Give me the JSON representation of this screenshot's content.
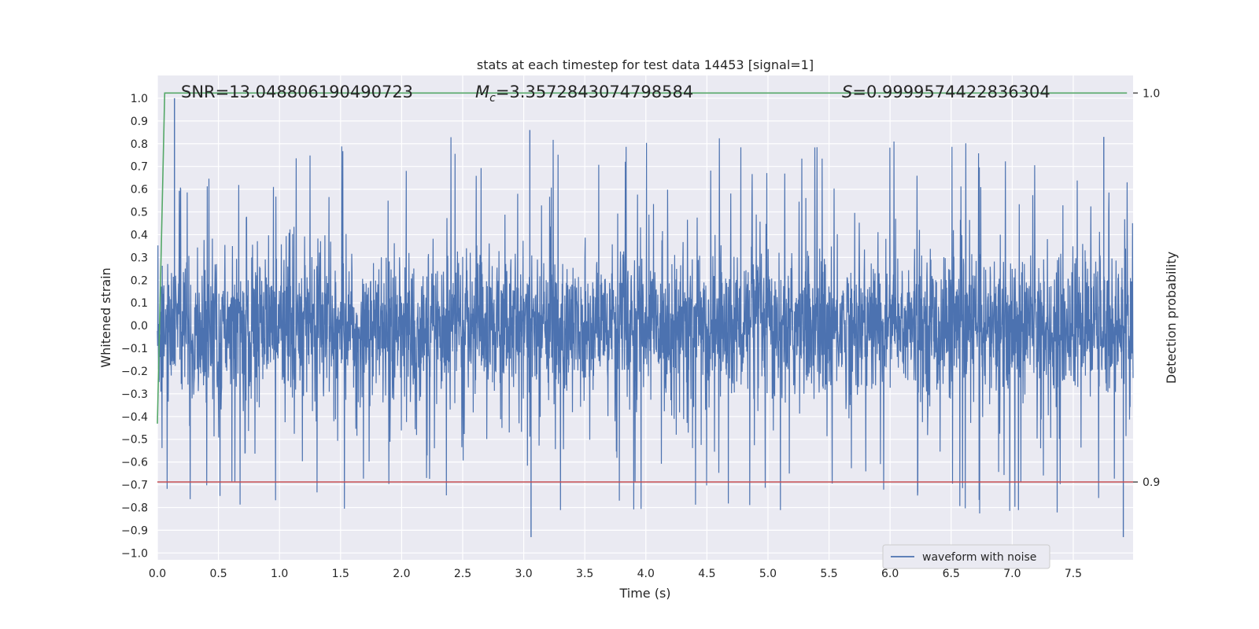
{
  "chart_data": {
    "type": "line",
    "title": "stats at each timestep for test data 14453 [signal=1]",
    "xlabel": "Time (s)",
    "ylabel": "Whitened strain",
    "ylabel_right": "Detection probability",
    "xlim": [
      0.0,
      7.99
    ],
    "ylim": [
      -1.03,
      1.1
    ],
    "ylim_right": [
      0.88,
      1.0045
    ],
    "x_ticks": [
      0.0,
      0.5,
      1.0,
      1.5,
      2.0,
      2.5,
      3.0,
      3.5,
      4.0,
      4.5,
      5.0,
      5.5,
      6.0,
      6.5,
      7.0,
      7.5
    ],
    "x_tick_labels": [
      "0.0",
      "0.5",
      "1.0",
      "1.5",
      "2.0",
      "2.5",
      "3.0",
      "3.5",
      "4.0",
      "4.5",
      "5.0",
      "5.5",
      "6.0",
      "6.5",
      "7.0",
      "7.5"
    ],
    "y_ticks": [
      1.0,
      0.9,
      0.8,
      0.7,
      0.6,
      0.5,
      0.4,
      0.3,
      0.2,
      0.1,
      0.0,
      -0.1,
      -0.2,
      -0.3,
      -0.4,
      -0.5,
      -0.6,
      -0.7,
      -0.8,
      -0.9,
      -1.0
    ],
    "y_tick_labels": [
      "1.0",
      "0.9",
      "0.8",
      "0.7",
      "0.6",
      "0.5",
      "0.4",
      "0.3",
      "0.2",
      "0.1",
      "0.0",
      "−0.1",
      "−0.2",
      "−0.3",
      "−0.4",
      "−0.5",
      "−0.6",
      "−0.7",
      "−0.8",
      "−0.9",
      "−1.0"
    ],
    "y_right_ticks": [
      1.0,
      0.9
    ],
    "y_right_tick_labels": [
      "1.0",
      "0.9"
    ],
    "grid": true,
    "legend_position": "bottom-right",
    "annotations": {
      "snr": "SNR=13.048806190490723",
      "mc_symbol": "M",
      "mc_subscript": "c",
      "mc_value": "=3.3572843074798584",
      "s_symbol": "S",
      "s_value": "=0.9999574422836304"
    },
    "series": [
      {
        "name": "waveform with noise",
        "axis": "left",
        "color": "#4c72b0",
        "description_of_values": "noisy whitened strain, dense oscillation roughly within ±0.35 with spikes to about ±0.85",
        "duration_s": 7.99,
        "amplitude_core": 0.3,
        "spike_max": 1.0,
        "spike_min": -0.93
      },
      {
        "axis": "right",
        "color": "#55a868",
        "x": [
          0.0,
          0.06,
          7.94
        ],
        "y": [
          0.915,
          1.0,
          1.0
        ]
      },
      {
        "axis": "right",
        "color": "#c44e52",
        "x": [
          0.0,
          7.99
        ],
        "y": [
          0.9,
          0.9
        ]
      }
    ]
  },
  "colors": {
    "plot_background": "#eaeaf2",
    "grid": "#ffffff",
    "text": "#262626"
  }
}
